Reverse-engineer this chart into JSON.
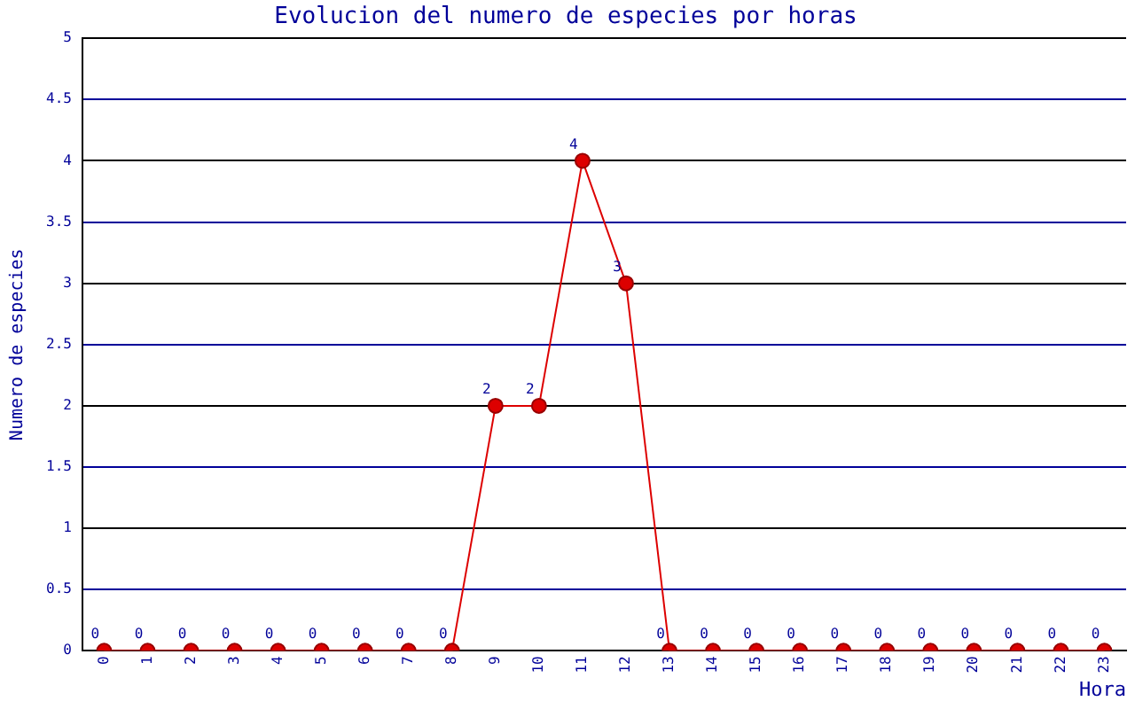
{
  "chart_data": {
    "type": "line",
    "title": "Evolucion del numero de especies por horas",
    "xlabel": "Hora",
    "ylabel": "Numero de especies",
    "categories": [
      "0",
      "1",
      "2",
      "3",
      "4",
      "5",
      "6",
      "7",
      "8",
      "9",
      "10",
      "11",
      "12",
      "13",
      "14",
      "15",
      "16",
      "17",
      "18",
      "19",
      "20",
      "21",
      "22",
      "23"
    ],
    "series": [
      {
        "color": "#dd0000",
        "values": [
          0,
          0,
          0,
          0,
          0,
          0,
          0,
          0,
          0,
          2,
          2,
          4,
          3,
          0,
          0,
          0,
          0,
          0,
          0,
          0,
          0,
          0,
          0,
          0
        ]
      }
    ],
    "ylim": [
      0,
      5
    ],
    "yticks": [
      0,
      0.5,
      1,
      1.5,
      2,
      2.5,
      3,
      3.5,
      4,
      4.5,
      5
    ],
    "grid": "y",
    "legend": false,
    "marker": "circle",
    "line_style": "solid",
    "data_labels": true
  }
}
